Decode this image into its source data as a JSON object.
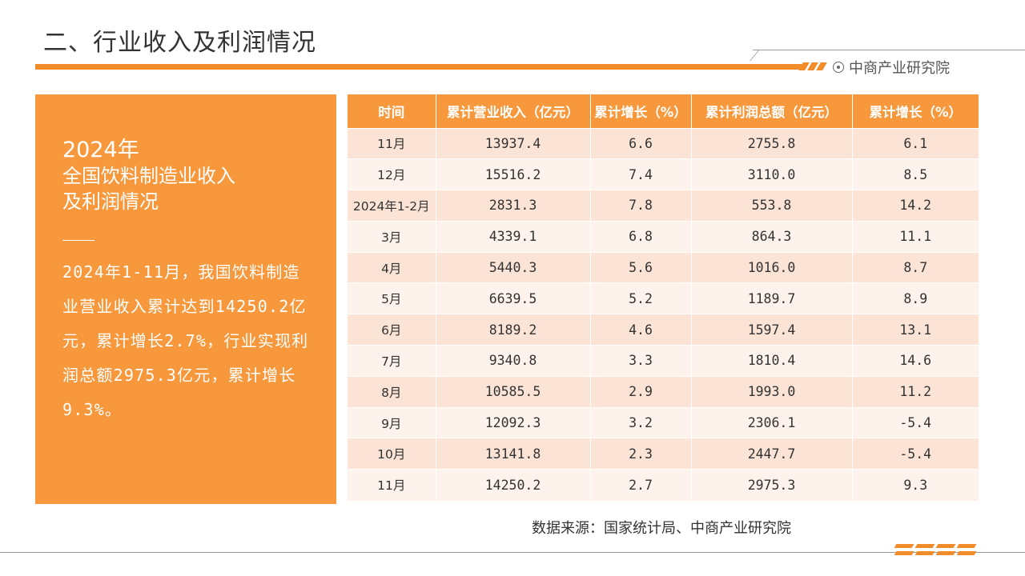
{
  "header": {
    "title": "二、行业收入及利润情况",
    "brand": "中商产业研究院",
    "accent_color": "#f7983c"
  },
  "panel": {
    "year": "2024年",
    "heading_line1": "全国饮料制造业收入",
    "heading_line2": "及利润情况",
    "body": "2024年1-11月，我国饮料制造业营业收入累计达到14250.2亿元，累计增长2.7%，行业实现利润总额2975.3亿元，累计增长9.3%。"
  },
  "table": {
    "headers": [
      "时间",
      "累计营业收入（亿元）",
      "累计增长（%）",
      "累计利润总额（亿元）",
      "累计增长（%）"
    ],
    "rows": [
      [
        "11月",
        "13937.4",
        "6.6",
        "2755.8",
        "6.1"
      ],
      [
        "12月",
        "15516.2",
        "7.4",
        "3110.0",
        "8.5"
      ],
      [
        "2024年1-2月",
        "2831.3",
        "7.8",
        "553.8",
        "14.2"
      ],
      [
        "3月",
        "4339.1",
        "6.8",
        "864.3",
        "11.1"
      ],
      [
        "4月",
        "5440.3",
        "5.6",
        "1016.0",
        "8.7"
      ],
      [
        "5月",
        "6639.5",
        "5.2",
        "1189.7",
        "8.9"
      ],
      [
        "6月",
        "8189.2",
        "4.6",
        "1597.4",
        "13.1"
      ],
      [
        "7月",
        "9340.8",
        "3.3",
        "1810.4",
        "14.6"
      ],
      [
        "8月",
        "10585.5",
        "2.9",
        "1993.0",
        "11.2"
      ],
      [
        "9月",
        "12092.3",
        "3.2",
        "2306.1",
        "-5.4"
      ],
      [
        "10月",
        "13141.8",
        "2.3",
        "2447.7",
        "-5.4"
      ],
      [
        "11月",
        "14250.2",
        "2.7",
        "2975.3",
        "9.3"
      ]
    ]
  },
  "footer": {
    "source": "数据来源：国家统计局、中商产业研究院"
  }
}
